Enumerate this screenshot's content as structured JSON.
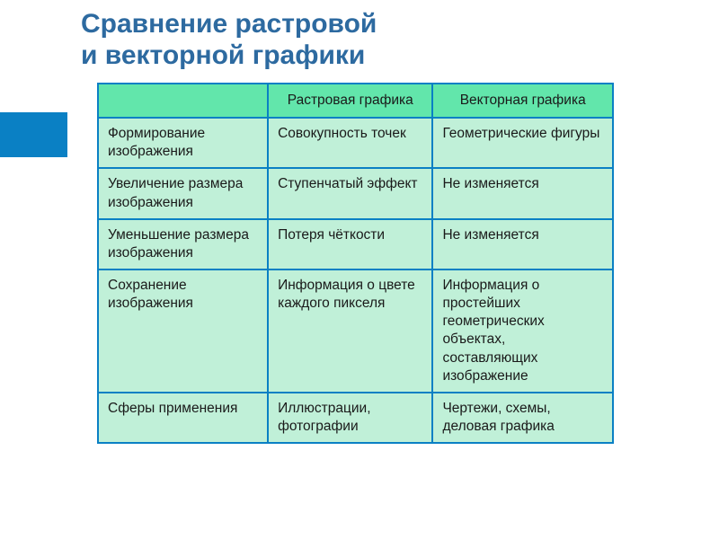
{
  "title_line1": "Сравнение растровой",
  "title_line2": "и векторной графики",
  "title_color": "#2d6aa0",
  "sidebar_color": "#0a80c4",
  "table": {
    "header_bg": "#62e6ab",
    "body_bg": "#c0f0d8",
    "border_color": "#0a80c4",
    "columns": [
      "",
      "Растровая графика",
      "Векторная графика"
    ],
    "rows": [
      [
        "Формирование изображения",
        "Совокупность точек",
        "Геометрические фигуры"
      ],
      [
        "Увеличение размера изображения",
        "Ступенчатый эффект",
        "Не изменяется"
      ],
      [
        "Уменьшение размера изображения",
        "Потеря чёткости",
        "Не изменяется"
      ],
      [
        "Сохранение изображения",
        "Информация о цвете каждого пикселя",
        "Информация о простейших геометрических объектах, составляющих изображение"
      ],
      [
        "Сферы применения",
        "Иллюстрации, фотографии",
        "Чертежи, схемы, деловая графика"
      ]
    ]
  }
}
